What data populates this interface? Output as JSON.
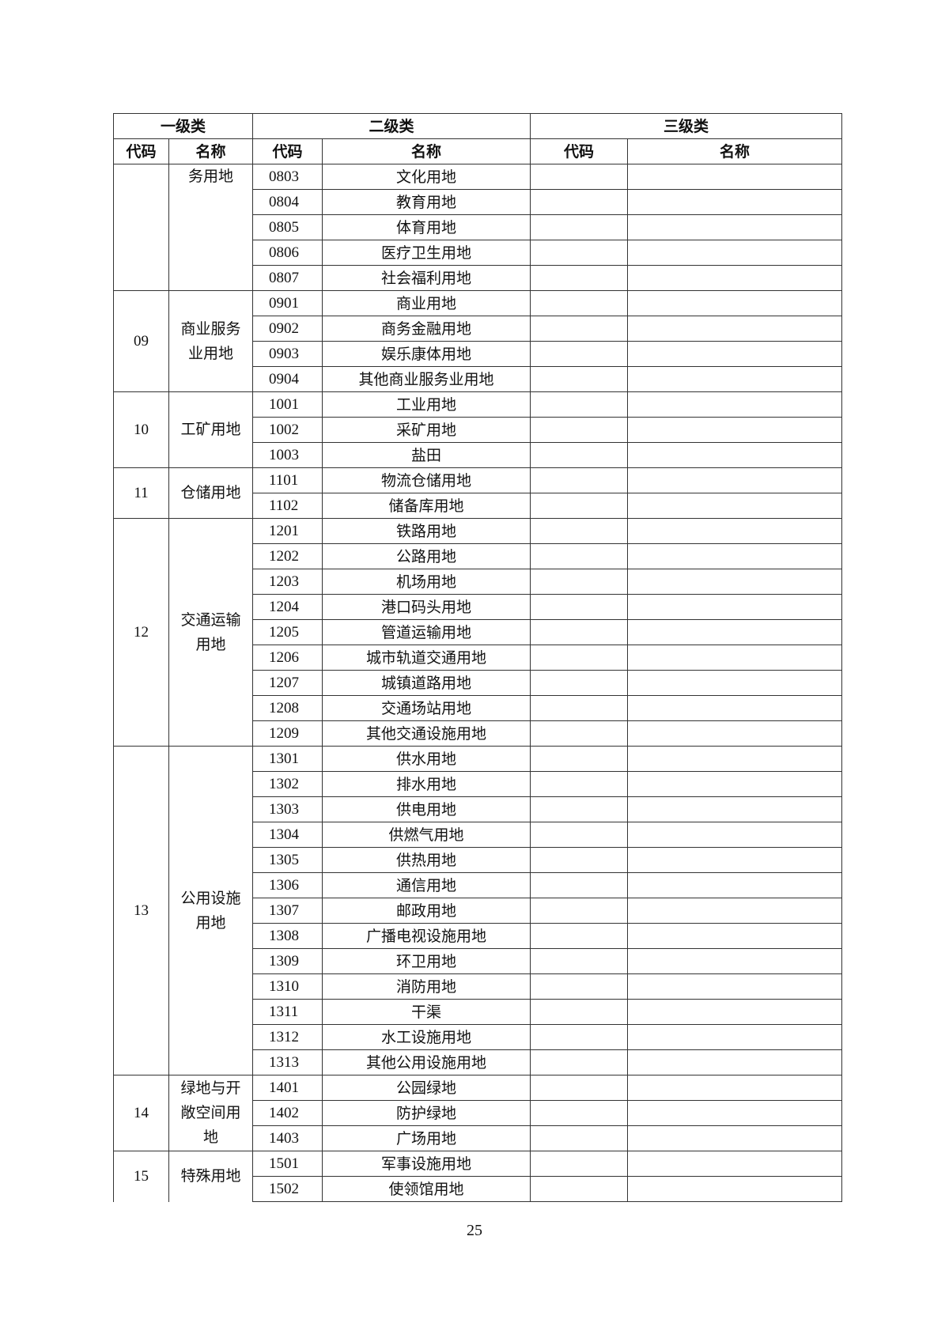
{
  "header": {
    "level1": "一级类",
    "level2": "二级类",
    "level3": "三级类",
    "code": "代码",
    "name": "名称"
  },
  "groups": [
    {
      "code": "",
      "name": "务用地",
      "continued": true,
      "rows": [
        [
          "0803",
          "文化用地"
        ],
        [
          "0804",
          "教育用地"
        ],
        [
          "0805",
          "体育用地"
        ],
        [
          "0806",
          "医疗卫生用地"
        ],
        [
          "0807",
          "社会福利用地"
        ]
      ]
    },
    {
      "code": "09",
      "name": "商业服务业用地",
      "rows": [
        [
          "0901",
          "商业用地"
        ],
        [
          "0902",
          "商务金融用地"
        ],
        [
          "0903",
          "娱乐康体用地"
        ],
        [
          "0904",
          "其他商业服务业用地"
        ]
      ]
    },
    {
      "code": "10",
      "name": "工矿用地",
      "rows": [
        [
          "1001",
          "工业用地"
        ],
        [
          "1002",
          "采矿用地"
        ],
        [
          "1003",
          "盐田"
        ]
      ]
    },
    {
      "code": "11",
      "name": "仓储用地",
      "rows": [
        [
          "1101",
          "物流仓储用地"
        ],
        [
          "1102",
          "储备库用地"
        ]
      ]
    },
    {
      "code": "12",
      "name": "交通运输用地",
      "rows": [
        [
          "1201",
          "铁路用地"
        ],
        [
          "1202",
          "公路用地"
        ],
        [
          "1203",
          "机场用地"
        ],
        [
          "1204",
          "港口码头用地"
        ],
        [
          "1205",
          "管道运输用地"
        ],
        [
          "1206",
          "城市轨道交通用地"
        ],
        [
          "1207",
          "城镇道路用地"
        ],
        [
          "1208",
          "交通场站用地"
        ],
        [
          "1209",
          "其他交通设施用地"
        ]
      ]
    },
    {
      "code": "13",
      "name": "公用设施用地",
      "rows": [
        [
          "1301",
          "供水用地"
        ],
        [
          "1302",
          "排水用地"
        ],
        [
          "1303",
          "供电用地"
        ],
        [
          "1304",
          "供燃气用地"
        ],
        [
          "1305",
          "供热用地"
        ],
        [
          "1306",
          "通信用地"
        ],
        [
          "1307",
          "邮政用地"
        ],
        [
          "1308",
          "广播电视设施用地"
        ],
        [
          "1309",
          "环卫用地"
        ],
        [
          "1310",
          "消防用地"
        ],
        [
          "1311",
          "干渠"
        ],
        [
          "1312",
          "水工设施用地"
        ],
        [
          "1313",
          "其他公用设施用地"
        ]
      ]
    },
    {
      "code": "14",
      "name": "绿地与开敞空间用地",
      "rows": [
        [
          "1401",
          "公园绿地"
        ],
        [
          "1402",
          "防护绿地"
        ],
        [
          "1403",
          "广场用地"
        ]
      ]
    },
    {
      "code": "15",
      "name": "特殊用地",
      "open": true,
      "rows": [
        [
          "1501",
          "军事设施用地"
        ],
        [
          "1502",
          "使领馆用地"
        ]
      ]
    }
  ],
  "page_number": "25"
}
